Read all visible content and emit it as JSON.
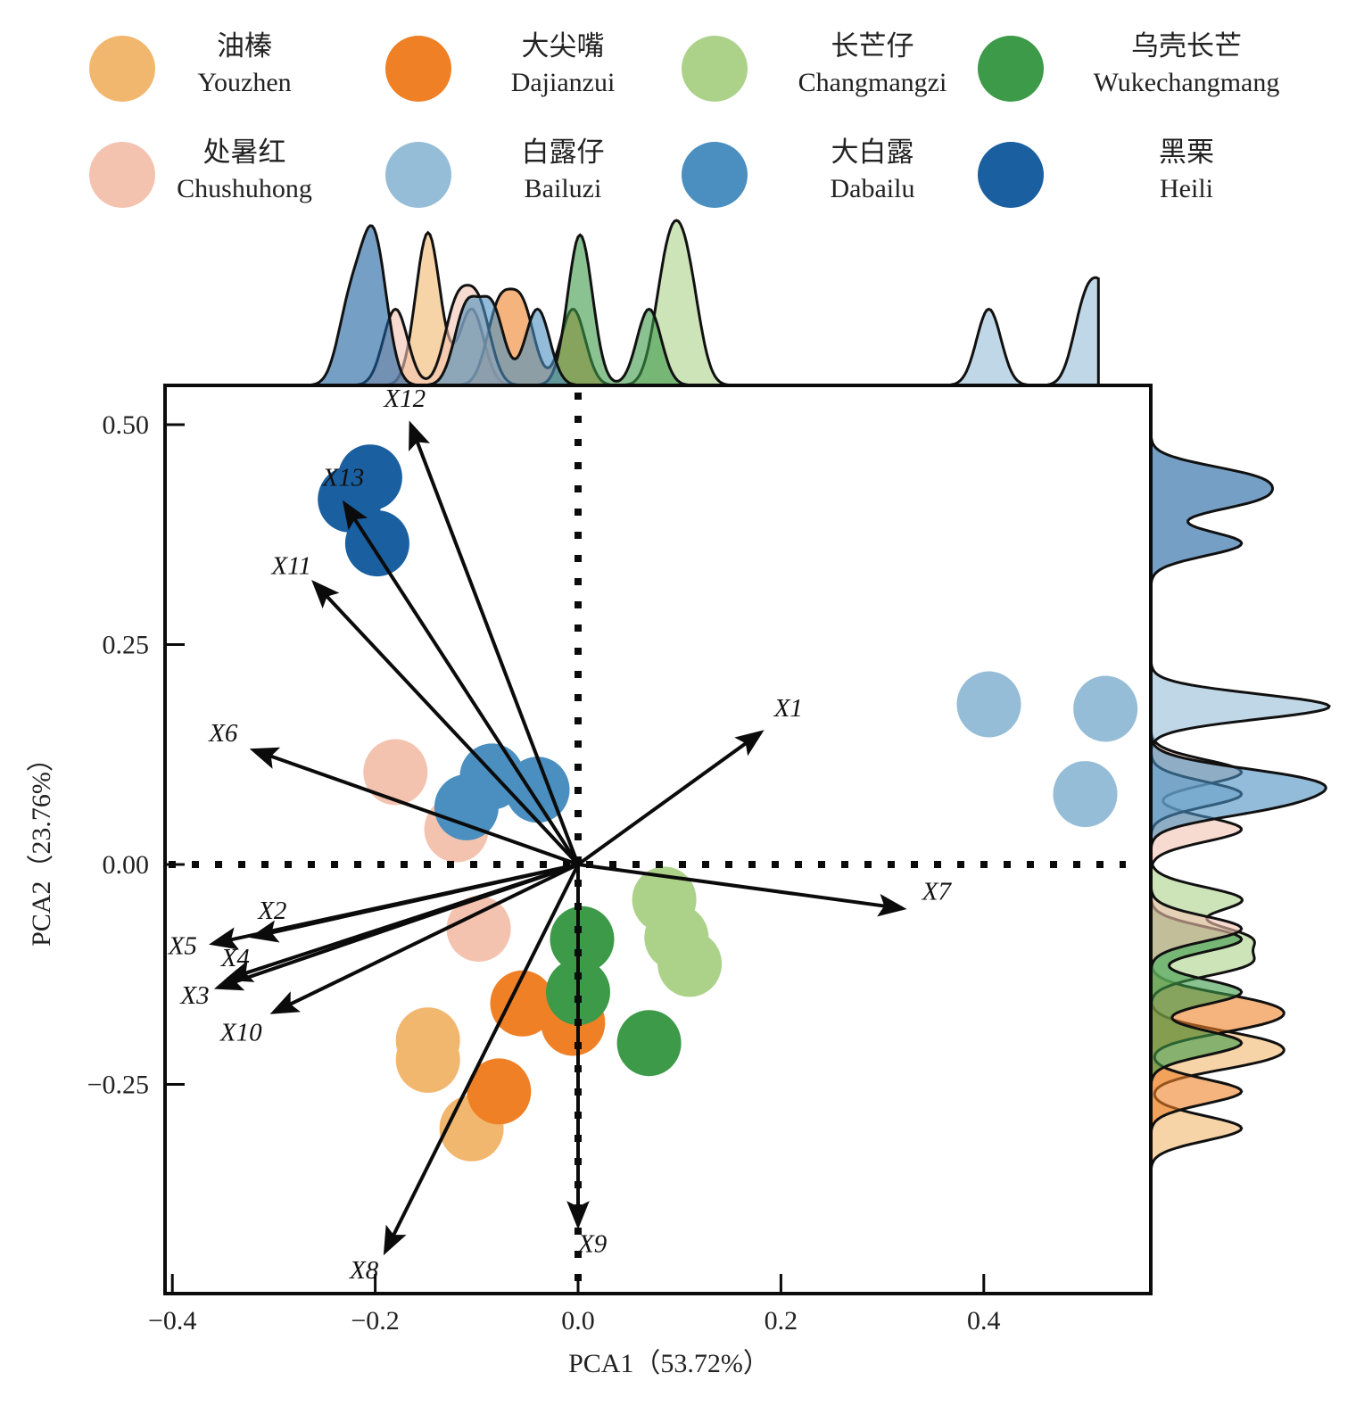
{
  "chart_data": {
    "type": "scatter",
    "subtype": "pca-biplot-with-marginal-density",
    "xlabel": "PCA1（53.72%）",
    "ylabel": "PCA2（23.76%）",
    "xlim": [
      -0.41,
      0.56
    ],
    "ylim": [
      -0.485,
      0.545
    ],
    "xticks": [
      -0.4,
      -0.2,
      0.0,
      0.2,
      0.4
    ],
    "xtick_labels": [
      "−0.4",
      "−0.2",
      "0.0",
      "0.2",
      "0.4"
    ],
    "yticks": [
      0.5,
      0.25,
      0.0,
      -0.25
    ],
    "ytick_labels": [
      "0.50",
      "0.25",
      "0.00",
      "−0.25"
    ],
    "grid": false,
    "reference_lines": {
      "x": 0.0,
      "y": 0.0,
      "style": "dotted"
    },
    "legend_position": "top",
    "series": [
      {
        "name": "Youzhen",
        "name_cn": "油榛",
        "color": "#F2B76E",
        "points": [
          [
            -0.148,
            -0.2
          ],
          [
            -0.148,
            -0.222
          ],
          [
            -0.105,
            -0.3
          ]
        ]
      },
      {
        "name": "Dajianzui",
        "name_cn": "大尖嘴",
        "color": "#EF8026",
        "points": [
          [
            -0.055,
            -0.158
          ],
          [
            -0.005,
            -0.18
          ],
          [
            -0.078,
            -0.258
          ]
        ]
      },
      {
        "name": "Changmangzi",
        "name_cn": "长芒仔",
        "color": "#ACD28A",
        "points": [
          [
            0.085,
            -0.04
          ],
          [
            0.097,
            -0.083
          ],
          [
            0.11,
            -0.113
          ]
        ]
      },
      {
        "name": "Wukechangmang",
        "name_cn": "乌壳长芒",
        "color": "#3C9A48",
        "points": [
          [
            0.004,
            -0.085
          ],
          [
            0.0,
            -0.145
          ],
          [
            0.07,
            -0.203
          ]
        ]
      },
      {
        "name": "Chushuhong",
        "name_cn": "处暑红",
        "color": "#F4C3B0",
        "points": [
          [
            -0.18,
            0.105
          ],
          [
            -0.12,
            0.04
          ],
          [
            -0.098,
            -0.073
          ]
        ]
      },
      {
        "name": "Bailuzi",
        "name_cn": "白露仔",
        "color": "#96BDD7",
        "points": [
          [
            0.405,
            0.182
          ],
          [
            0.52,
            0.177
          ],
          [
            0.5,
            0.08
          ]
        ]
      },
      {
        "name": "Dabailu",
        "name_cn": "大白露",
        "color": "#4A8FC0",
        "points": [
          [
            -0.085,
            0.1
          ],
          [
            -0.04,
            0.085
          ],
          [
            -0.11,
            0.065
          ]
        ]
      },
      {
        "name": "Heili",
        "name_cn": "黑栗",
        "color": "#1A5FA0",
        "points": [
          [
            -0.205,
            0.44
          ],
          [
            -0.225,
            0.415
          ],
          [
            -0.198,
            0.365
          ]
        ]
      }
    ],
    "loadings": [
      {
        "label": "X1",
        "x": 0.18,
        "y": 0.15
      },
      {
        "label": "X2",
        "x": -0.32,
        "y": -0.082
      },
      {
        "label": "X3",
        "x": -0.355,
        "y": -0.14
      },
      {
        "label": "X4",
        "x": -0.345,
        "y": -0.13
      },
      {
        "label": "X5",
        "x": -0.36,
        "y": -0.09
      },
      {
        "label": "X6",
        "x": -0.32,
        "y": 0.13
      },
      {
        "label": "X7",
        "x": 0.32,
        "y": -0.05
      },
      {
        "label": "X8",
        "x": -0.19,
        "y": -0.44
      },
      {
        "label": "X9",
        "x": 0.0,
        "y": -0.41
      },
      {
        "label": "X10",
        "x": -0.3,
        "y": -0.168
      },
      {
        "label": "X11",
        "x": -0.26,
        "y": 0.32
      },
      {
        "label": "X12",
        "x": -0.165,
        "y": 0.5
      },
      {
        "label": "X13",
        "x": -0.23,
        "y": 0.41
      }
    ],
    "marginal_density": {
      "top": "per-group kernel density along PCA1",
      "right": "per-group kernel density along PCA2"
    }
  }
}
